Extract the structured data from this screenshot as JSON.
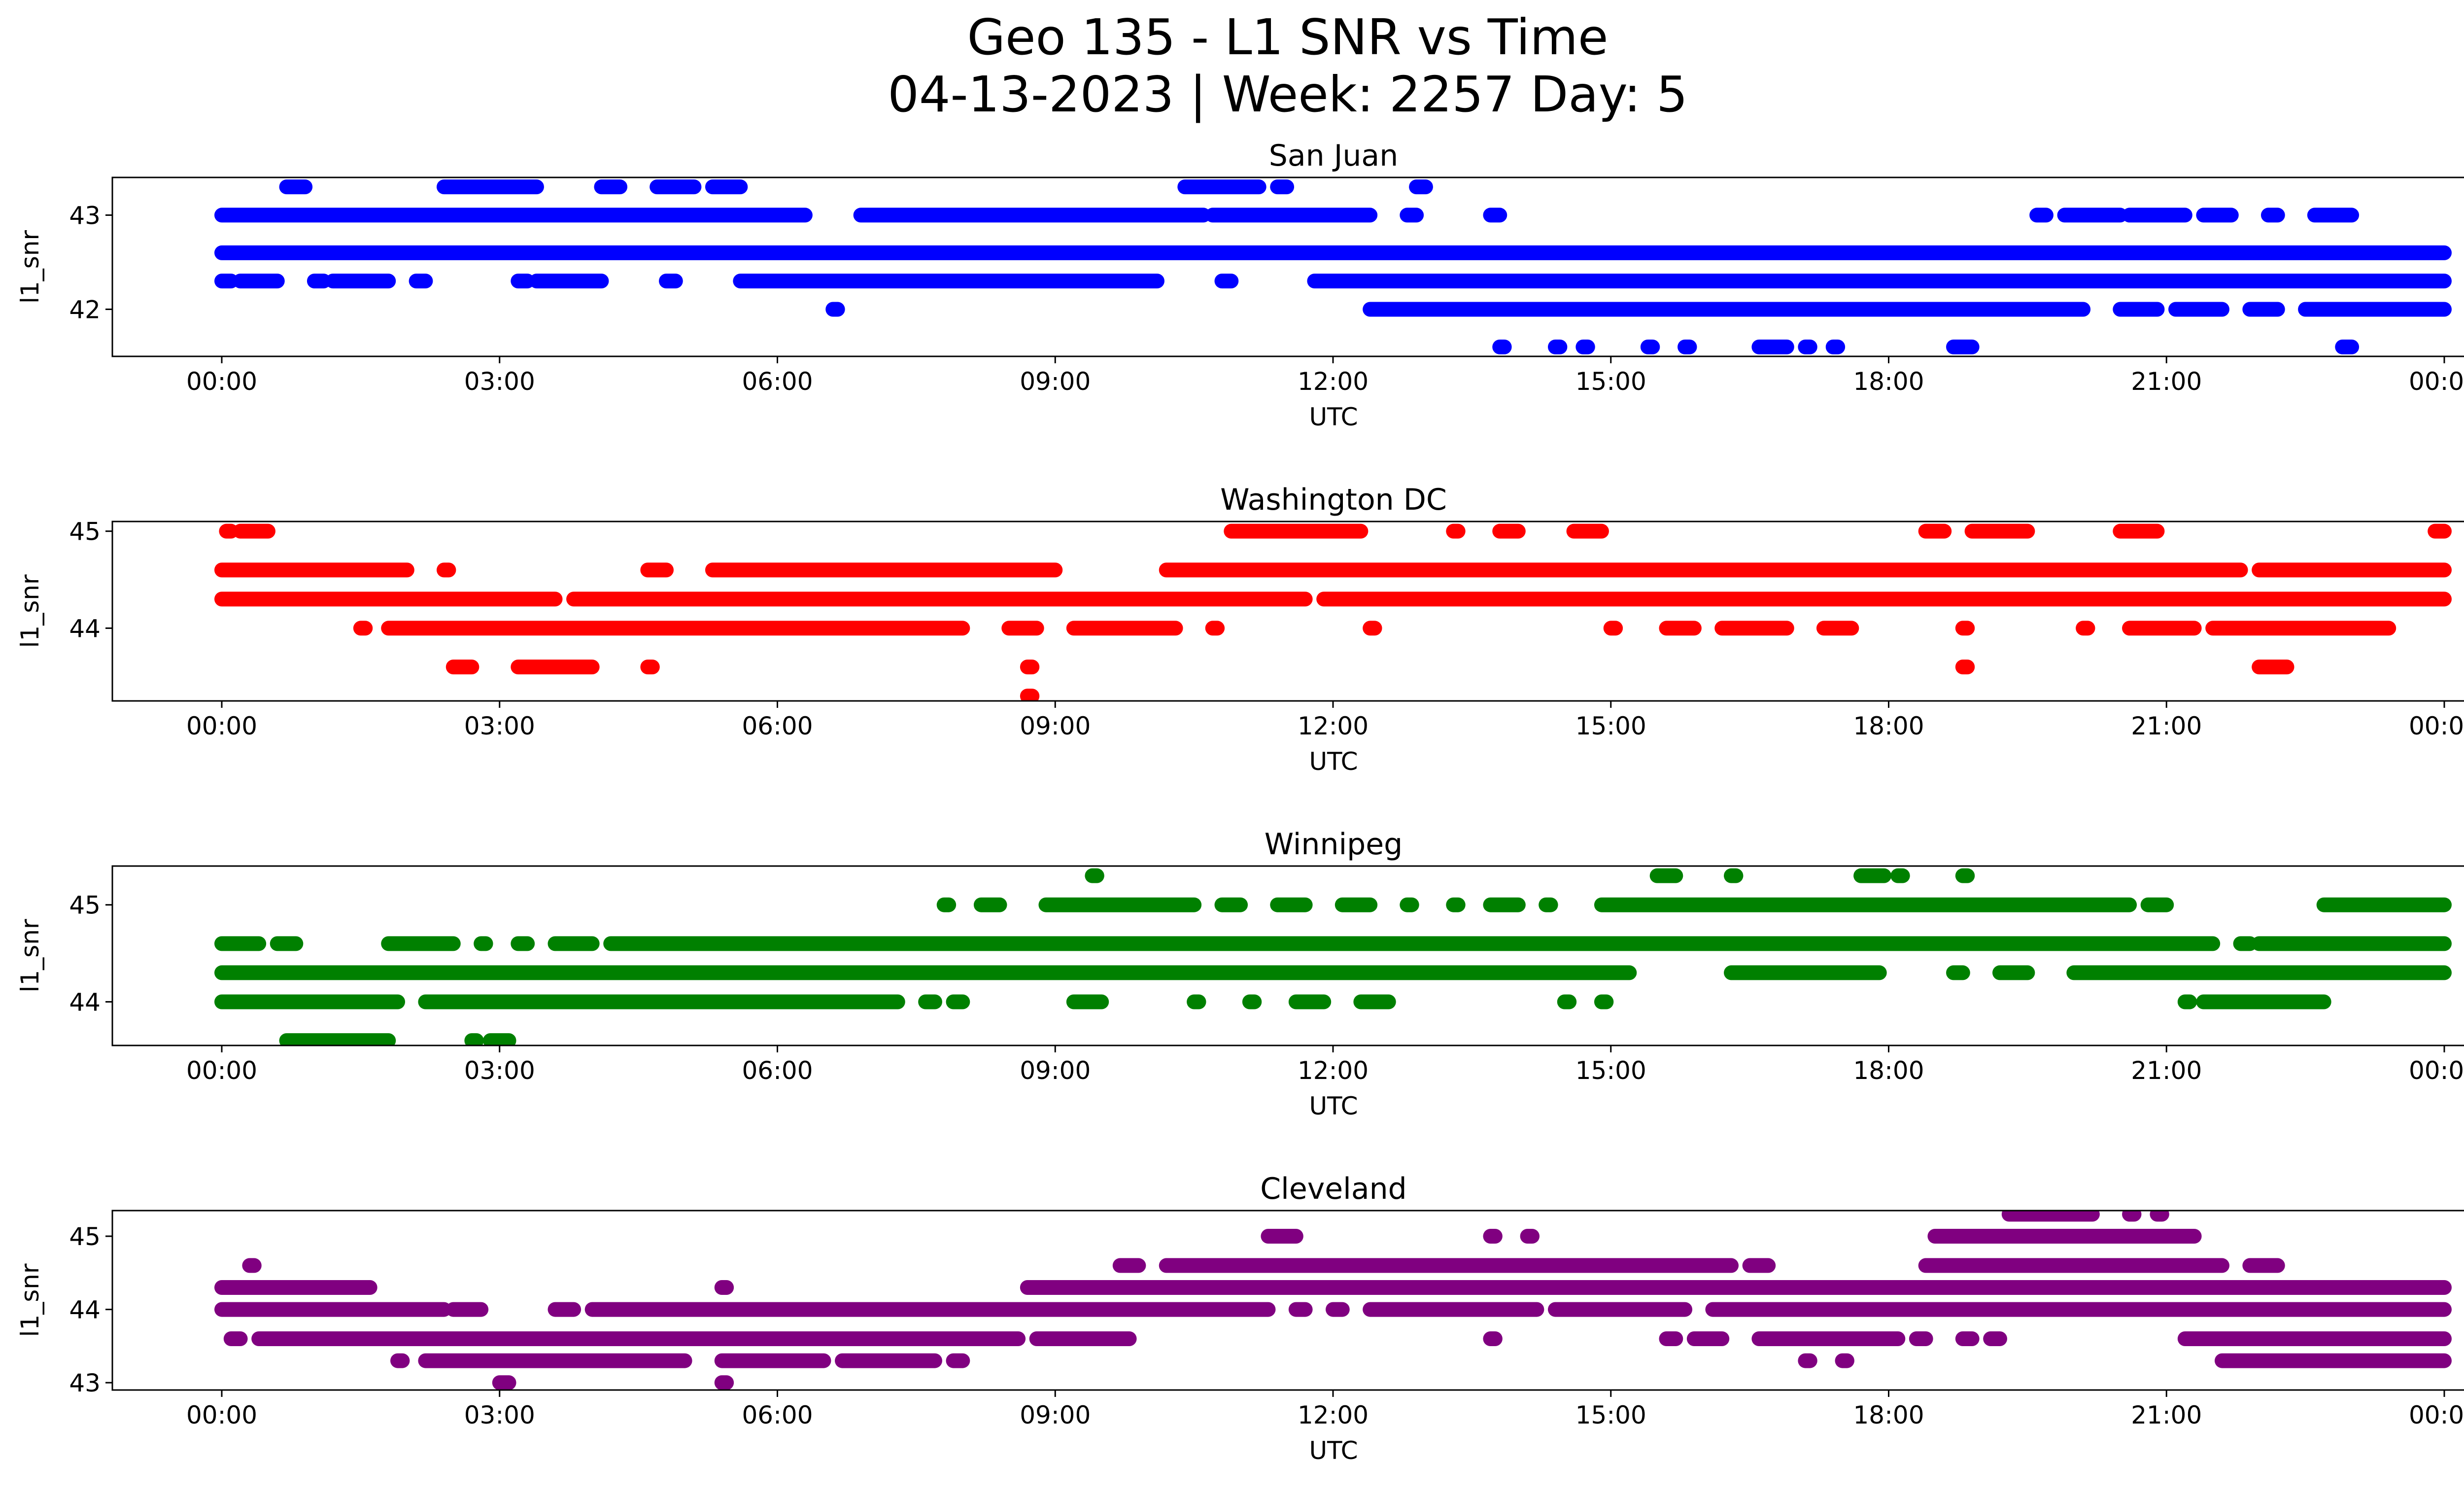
{
  "figure": {
    "title_line1": "Geo 135 - L1 SNR vs Time",
    "title_line2": "04-13-2023 | Week: 2257 Day: 5"
  },
  "chart_data": [
    {
      "type": "scatter",
      "title": "San Juan",
      "xlabel": "UTC",
      "ylabel": "l1_snr",
      "color": "#0000ff",
      "xlim": [
        "2023-04-13 00:00",
        "2023-04-14 00:00"
      ],
      "ylim": [
        41.5,
        43.4
      ],
      "yticks": [
        42,
        43
      ],
      "xticks": [
        "00:00",
        "03:00",
        "06:00",
        "09:00",
        "12:00",
        "15:00",
        "18:00",
        "21:00",
        "00:00"
      ],
      "series": [
        {
          "y": 42.6,
          "segments": [
            [
              0.0,
              24.0
            ]
          ]
        },
        {
          "y": 43.0,
          "segments": [
            [
              0.0,
              6.3
            ],
            [
              6.9,
              10.6
            ],
            [
              10.7,
              12.4
            ],
            [
              12.8,
              12.9
            ],
            [
              13.7,
              13.8
            ],
            [
              19.6,
              19.7
            ],
            [
              19.9,
              20.5
            ],
            [
              20.6,
              21.2
            ],
            [
              21.4,
              21.7
            ],
            [
              22.1,
              22.2
            ],
            [
              22.6,
              23.0
            ]
          ]
        },
        {
          "y": 42.3,
          "segments": [
            [
              0.0,
              0.1
            ],
            [
              0.2,
              0.6
            ],
            [
              1.0,
              1.1
            ],
            [
              1.2,
              1.8
            ],
            [
              2.1,
              2.2
            ],
            [
              3.2,
              3.3
            ],
            [
              3.4,
              4.1
            ],
            [
              4.8,
              4.9
            ],
            [
              5.6,
              10.1
            ],
            [
              10.8,
              10.9
            ],
            [
              11.8,
              24.0
            ]
          ]
        },
        {
          "y": 43.3,
          "segments": [
            [
              0.7,
              0.9
            ],
            [
              2.4,
              3.4
            ],
            [
              4.1,
              4.3
            ],
            [
              4.7,
              5.1
            ],
            [
              5.3,
              5.6
            ],
            [
              10.4,
              11.2
            ],
            [
              11.4,
              11.5
            ],
            [
              12.9,
              13.0
            ]
          ]
        },
        {
          "y": 42.0,
          "segments": [
            [
              6.6,
              6.65
            ],
            [
              12.4,
              20.1
            ],
            [
              20.5,
              20.9
            ],
            [
              21.1,
              21.6
            ],
            [
              21.9,
              22.2
            ],
            [
              22.5,
              24.0
            ]
          ]
        },
        {
          "y": 41.6,
          "segments": [
            [
              13.8,
              13.85
            ],
            [
              14.4,
              14.45
            ],
            [
              14.7,
              14.75
            ],
            [
              15.4,
              15.45
            ],
            [
              15.8,
              15.85
            ],
            [
              16.6,
              16.9
            ],
            [
              17.1,
              17.15
            ],
            [
              17.4,
              17.45
            ],
            [
              18.7,
              18.9
            ],
            [
              22.9,
              23.0
            ]
          ]
        }
      ]
    },
    {
      "type": "scatter",
      "title": "Washington DC",
      "xlabel": "UTC",
      "ylabel": "l1_snr",
      "color": "#ff0000",
      "xlim": [
        "2023-04-13 00:00",
        "2023-04-14 00:00"
      ],
      "ylim": [
        43.25,
        45.1
      ],
      "yticks": [
        44,
        45
      ],
      "xticks": [
        "00:00",
        "03:00",
        "06:00",
        "09:00",
        "12:00",
        "15:00",
        "18:00",
        "21:00",
        "00:00"
      ],
      "series": [
        {
          "y": 44.3,
          "segments": [
            [
              0.0,
              3.6
            ],
            [
              3.8,
              11.7
            ],
            [
              11.9,
              24.0
            ]
          ]
        },
        {
          "y": 44.6,
          "segments": [
            [
              0.0,
              2.0
            ],
            [
              2.4,
              2.45
            ],
            [
              4.6,
              4.8
            ],
            [
              5.3,
              9.0
            ],
            [
              10.2,
              21.8
            ],
            [
              22.0,
              24.0
            ]
          ]
        },
        {
          "y": 45.0,
          "segments": [
            [
              0.05,
              0.1
            ],
            [
              0.2,
              0.5
            ],
            [
              10.9,
              12.3
            ],
            [
              13.3,
              13.35
            ],
            [
              13.8,
              14.0
            ],
            [
              14.6,
              14.9
            ],
            [
              18.4,
              18.6
            ],
            [
              18.9,
              19.5
            ],
            [
              20.5,
              20.9
            ],
            [
              23.9,
              24.0
            ]
          ]
        },
        {
          "y": 44.0,
          "segments": [
            [
              1.5,
              1.55
            ],
            [
              1.8,
              8.0
            ],
            [
              8.5,
              8.8
            ],
            [
              9.2,
              10.3
            ],
            [
              10.7,
              10.75
            ],
            [
              12.4,
              12.45
            ],
            [
              15.0,
              15.05
            ],
            [
              15.6,
              15.9
            ],
            [
              16.2,
              16.9
            ],
            [
              17.3,
              17.6
            ],
            [
              18.8,
              18.85
            ],
            [
              20.1,
              20.15
            ],
            [
              20.6,
              21.3
            ],
            [
              21.5,
              23.4
            ]
          ]
        },
        {
          "y": 43.6,
          "segments": [
            [
              2.5,
              2.7
            ],
            [
              3.2,
              4.0
            ],
            [
              4.6,
              4.65
            ],
            [
              8.7,
              8.75
            ],
            [
              18.8,
              18.85
            ],
            [
              22.0,
              22.3
            ]
          ]
        },
        {
          "y": 43.3,
          "segments": [
            [
              8.7,
              8.75
            ]
          ]
        }
      ]
    },
    {
      "type": "scatter",
      "title": "Winnipeg",
      "xlabel": "UTC",
      "ylabel": "l1_snr",
      "color": "#008000",
      "xlim": [
        "2023-04-13 00:00",
        "2023-04-14 00:00"
      ],
      "ylim": [
        43.55,
        45.4
      ],
      "yticks": [
        44,
        45
      ],
      "xticks": [
        "00:00",
        "03:00",
        "06:00",
        "09:00",
        "12:00",
        "15:00",
        "18:00",
        "21:00",
        "00:00"
      ],
      "series": [
        {
          "y": 44.3,
          "segments": [
            [
              0.0,
              15.2
            ],
            [
              16.3,
              17.9
            ],
            [
              18.7,
              18.8
            ],
            [
              19.2,
              19.5
            ],
            [
              20.0,
              24.0
            ]
          ]
        },
        {
          "y": 44.6,
          "segments": [
            [
              0.0,
              0.4
            ],
            [
              0.6,
              0.8
            ],
            [
              1.8,
              2.5
            ],
            [
              2.8,
              2.85
            ],
            [
              3.2,
              3.3
            ],
            [
              3.6,
              4.0
            ],
            [
              4.2,
              21.5
            ],
            [
              21.8,
              21.9
            ],
            [
              22.0,
              24.0
            ]
          ]
        },
        {
          "y": 44.0,
          "segments": [
            [
              0.0,
              1.9
            ],
            [
              2.2,
              7.3
            ],
            [
              7.6,
              7.7
            ],
            [
              7.9,
              8.0
            ],
            [
              9.2,
              9.5
            ],
            [
              10.5,
              10.55
            ],
            [
              11.1,
              11.15
            ],
            [
              11.6,
              11.9
            ],
            [
              12.3,
              12.6
            ],
            [
              14.5,
              14.55
            ],
            [
              14.9,
              14.95
            ],
            [
              21.2,
              21.25
            ],
            [
              21.4,
              22.7
            ]
          ]
        },
        {
          "y": 43.6,
          "segments": [
            [
              0.7,
              1.8
            ],
            [
              2.7,
              2.75
            ],
            [
              2.9,
              3.1
            ]
          ]
        },
        {
          "y": 45.0,
          "segments": [
            [
              7.8,
              7.85
            ],
            [
              8.2,
              8.4
            ],
            [
              8.9,
              10.5
            ],
            [
              10.8,
              11.0
            ],
            [
              11.4,
              11.7
            ],
            [
              12.1,
              12.4
            ],
            [
              12.8,
              12.85
            ],
            [
              13.3,
              13.35
            ],
            [
              13.7,
              14.0
            ],
            [
              14.3,
              14.35
            ],
            [
              14.9,
              20.6
            ],
            [
              20.8,
              21.0
            ],
            [
              22.7,
              24.0
            ]
          ]
        },
        {
          "y": 45.3,
          "segments": [
            [
              9.4,
              9.45
            ],
            [
              15.5,
              15.7
            ],
            [
              16.3,
              16.35
            ],
            [
              17.7,
              17.95
            ],
            [
              18.1,
              18.15
            ],
            [
              18.8,
              18.85
            ]
          ]
        }
      ]
    },
    {
      "type": "scatter",
      "title": "Cleveland",
      "xlabel": "UTC",
      "ylabel": "l1_snr",
      "color": "#800080",
      "xlim": [
        "2023-04-13 00:00",
        "2023-04-14 00:00"
      ],
      "ylim": [
        42.9,
        45.35
      ],
      "yticks": [
        43,
        44,
        45
      ],
      "xticks": [
        "00:00",
        "03:00",
        "06:00",
        "09:00",
        "12:00",
        "15:00",
        "18:00",
        "21:00",
        "00:00"
      ],
      "series": [
        {
          "y": 44.0,
          "segments": [
            [
              0.0,
              2.4
            ],
            [
              2.5,
              2.8
            ],
            [
              3.6,
              3.8
            ],
            [
              4.0,
              11.3
            ],
            [
              11.6,
              11.7
            ],
            [
              12.0,
              12.1
            ],
            [
              12.4,
              14.2
            ],
            [
              14.4,
              15.8
            ],
            [
              16.1,
              24.0
            ]
          ]
        },
        {
          "y": 44.3,
          "segments": [
            [
              0.0,
              1.6
            ],
            [
              5.4,
              5.45
            ],
            [
              8.7,
              9.0
            ],
            [
              9.0,
              24.0
            ]
          ]
        },
        {
          "y": 43.6,
          "segments": [
            [
              0.1,
              0.2
            ],
            [
              0.4,
              8.6
            ],
            [
              8.8,
              9.8
            ],
            [
              13.7,
              13.75
            ],
            [
              15.6,
              15.7
            ],
            [
              15.9,
              16.2
            ],
            [
              16.6,
              18.1
            ],
            [
              18.3,
              18.4
            ],
            [
              18.8,
              18.9
            ],
            [
              19.1,
              19.2
            ],
            [
              21.2,
              24.0
            ]
          ]
        },
        {
          "y": 44.6,
          "segments": [
            [
              0.3,
              0.35
            ],
            [
              9.7,
              9.9
            ],
            [
              10.2,
              16.3
            ],
            [
              16.5,
              16.7
            ],
            [
              18.4,
              21.6
            ],
            [
              21.9,
              22.2
            ]
          ]
        },
        {
          "y": 43.3,
          "segments": [
            [
              1.9,
              1.95
            ],
            [
              2.2,
              5.0
            ],
            [
              5.4,
              6.5
            ],
            [
              6.7,
              7.7
            ],
            [
              7.9,
              8.0
            ],
            [
              17.1,
              17.15
            ],
            [
              17.5,
              17.55
            ],
            [
              21.6,
              24.0
            ]
          ]
        },
        {
          "y": 43.0,
          "segments": [
            [
              3.0,
              3.1
            ],
            [
              5.4,
              5.45
            ]
          ]
        },
        {
          "y": 45.0,
          "segments": [
            [
              11.3,
              11.6
            ],
            [
              13.7,
              13.75
            ],
            [
              14.1,
              14.15
            ],
            [
              18.5,
              19.0
            ],
            [
              19.0,
              21.3
            ]
          ]
        },
        {
          "y": 45.3,
          "segments": [
            [
              19.3,
              20.2
            ],
            [
              20.6,
              20.65
            ],
            [
              20.9,
              20.95
            ]
          ]
        }
      ]
    }
  ]
}
